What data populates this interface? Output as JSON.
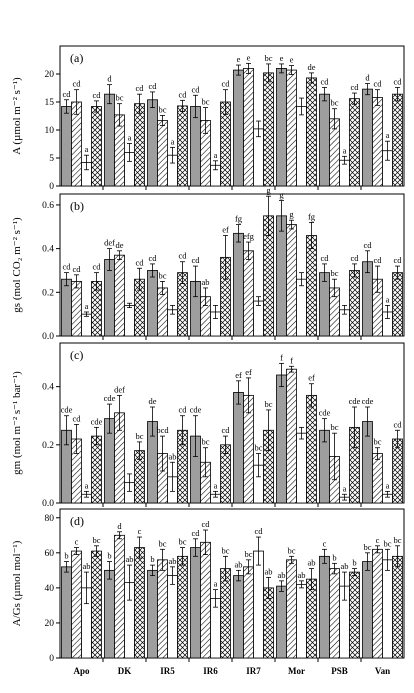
{
  "chart_data": [
    {
      "panel_label": "(a)",
      "type": "bar",
      "ylabel": "A (µmol m⁻² s⁻¹)",
      "ylim": [
        0,
        25
      ],
      "yticks": [
        0,
        5,
        10,
        15,
        20
      ],
      "categories": [
        "Apo",
        "DK",
        "IR5",
        "IR6",
        "IR7",
        "Mor",
        "PSB",
        "Van"
      ],
      "series": [
        {
          "values": [
            14.2,
            16.4,
            15.4,
            14.2,
            20.7,
            21.0,
            16.4,
            17.3
          ],
          "errors": [
            1.2,
            1.7,
            1.4,
            2.0,
            0.9,
            0.8,
            1.2,
            1.0
          ],
          "letters": [
            "cd",
            "d",
            "cd",
            "cd",
            "e",
            "e",
            "cd",
            "d"
          ]
        },
        {
          "values": [
            15.0,
            12.7,
            11.7,
            11.7,
            21.0,
            20.7,
            12.0,
            15.8
          ],
          "errors": [
            2.2,
            2.0,
            0.9,
            2.3,
            0.9,
            0.8,
            1.8,
            1.4
          ],
          "letters": [
            "cd",
            "bc",
            "bc",
            "bc",
            "e",
            "e",
            "bc",
            "cd"
          ]
        },
        {
          "values": [
            4.2,
            6.0,
            5.5,
            3.7,
            10.2,
            14.2,
            4.6,
            6.3
          ],
          "errors": [
            1.3,
            1.6,
            1.4,
            0.8,
            1.4,
            1.5,
            0.7,
            1.7
          ],
          "letters": [
            "a",
            "a",
            "a",
            "a",
            "",
            "",
            "a",
            "a"
          ]
        },
        {
          "values": [
            14.2,
            14.7,
            14.3,
            15.0,
            20.2,
            19.3,
            15.6,
            16.4
          ],
          "errors": [
            1.0,
            1.7,
            1.0,
            2.2,
            1.6,
            0.9,
            1.0,
            1.2
          ],
          "letters": [
            "cd",
            "cd",
            "cd",
            "cd",
            "bc",
            "de",
            "cd",
            "cd"
          ]
        }
      ]
    },
    {
      "panel_label": "(b)",
      "type": "bar",
      "ylabel": "gs (mol CO₂ m⁻² s⁻¹)",
      "ylim": [
        0,
        0.65
      ],
      "yticks": [
        0.0,
        0.2,
        0.4,
        0.6
      ],
      "categories": [
        "Apo",
        "DK",
        "IR5",
        "IR6",
        "IR7",
        "Mor",
        "PSB",
        "Van"
      ],
      "series": [
        {
          "values": [
            0.26,
            0.35,
            0.3,
            0.25,
            0.47,
            0.55,
            0.29,
            0.34
          ],
          "errors": [
            0.03,
            0.05,
            0.03,
            0.07,
            0.04,
            0.07,
            0.04,
            0.05
          ],
          "letters": [
            "cd",
            "def",
            "cd",
            "cd",
            "fg",
            "g",
            "cd",
            "cd"
          ]
        },
        {
          "values": [
            0.25,
            0.37,
            0.22,
            0.18,
            0.39,
            0.51,
            0.22,
            0.26
          ],
          "errors": [
            0.03,
            0.02,
            0.03,
            0.04,
            0.04,
            0.02,
            0.04,
            0.06
          ],
          "letters": [
            "cd",
            "de",
            "bc",
            "ab",
            "efg",
            "g",
            "bc",
            "cd"
          ]
        },
        {
          "values": [
            0.1,
            0.14,
            0.12,
            0.11,
            0.16,
            0.26,
            0.12,
            0.11
          ],
          "errors": [
            0.01,
            0.01,
            0.02,
            0.03,
            0.02,
            0.03,
            0.02,
            0.03
          ],
          "letters": [
            "a",
            "",
            "",
            "",
            "",
            "",
            "",
            "a"
          ]
        },
        {
          "values": [
            0.25,
            0.26,
            0.29,
            0.36,
            0.55,
            0.46,
            0.3,
            0.29
          ],
          "errors": [
            0.04,
            0.05,
            0.05,
            0.1,
            0.09,
            0.06,
            0.03,
            0.03
          ],
          "letters": [
            "cd",
            "cd",
            "cd",
            "ef",
            "g",
            "fg",
            "cd",
            "cd"
          ]
        }
      ]
    },
    {
      "panel_label": "(c)",
      "type": "bar",
      "ylabel": "gm (mol m⁻² s⁻¹ bar⁻¹)",
      "ylim": [
        0,
        0.55
      ],
      "yticks": [
        0.0,
        0.2,
        0.4
      ],
      "categories": [
        "Apo",
        "DK",
        "IR5",
        "IR6",
        "IR7",
        "Mor",
        "PSB",
        "Van"
      ],
      "series": [
        {
          "values": [
            0.25,
            0.29,
            0.28,
            0.23,
            0.38,
            0.44,
            0.25,
            0.28
          ],
          "errors": [
            0.05,
            0.05,
            0.05,
            0.07,
            0.04,
            0.04,
            0.04,
            0.05
          ],
          "letters": [
            "cde",
            "cde",
            "de",
            "cde",
            "ef",
            "f",
            "cde",
            "cde"
          ]
        },
        {
          "values": [
            0.22,
            0.31,
            0.17,
            0.14,
            0.37,
            0.46,
            0.16,
            0.17
          ],
          "errors": [
            0.05,
            0.06,
            0.06,
            0.05,
            0.06,
            0.01,
            0.08,
            0.02
          ],
          "letters": [
            "cd",
            "def",
            "bcd",
            "bc",
            "ef",
            "f",
            "bc",
            "bc"
          ]
        },
        {
          "values": [
            0.03,
            0.07,
            0.09,
            0.03,
            0.13,
            0.24,
            0.02,
            0.03
          ],
          "errors": [
            0.01,
            0.03,
            0.05,
            0.01,
            0.04,
            0.02,
            0.01,
            0.01
          ],
          "letters": [
            "a",
            "",
            "ab",
            "a",
            "bc",
            "",
            "a",
            "a"
          ]
        },
        {
          "values": [
            0.23,
            0.18,
            0.25,
            0.2,
            0.25,
            0.37,
            0.26,
            0.22
          ],
          "errors": [
            0.03,
            0.03,
            0.05,
            0.03,
            0.07,
            0.04,
            0.07,
            0.03
          ],
          "letters": [
            "cde",
            "bc",
            "cd",
            "cd",
            "bc",
            "ef",
            "cde",
            "cd"
          ]
        }
      ]
    },
    {
      "panel_label": "(d)",
      "type": "bar",
      "ylabel": "A/Gs (µmol mol⁻¹)",
      "ylim": [
        0,
        85
      ],
      "yticks": [
        0,
        20,
        40,
        60,
        80
      ],
      "categories": [
        "Apo",
        "DK",
        "IR5",
        "IR6",
        "IR7",
        "Mor",
        "PSB",
        "Van"
      ],
      "series": [
        {
          "values": [
            52,
            50,
            50,
            63,
            47,
            41,
            58,
            55
          ],
          "errors": [
            3,
            5,
            3,
            5,
            3,
            3,
            4,
            5
          ],
          "letters": [
            "b",
            "b",
            "b",
            "cd",
            "ab",
            "ab",
            "c",
            "bc"
          ]
        },
        {
          "values": [
            61,
            70,
            56,
            66,
            52,
            56,
            51,
            62
          ],
          "errors": [
            2,
            2,
            6,
            7,
            4,
            2,
            3,
            2
          ],
          "letters": [
            "c",
            "d",
            "bc",
            "cd",
            "bc",
            "bc",
            "b",
            "c"
          ]
        },
        {
          "values": [
            40,
            43,
            47,
            34,
            61,
            42,
            41,
            56
          ],
          "errors": [
            9,
            10,
            5,
            5,
            8,
            2,
            8,
            6
          ],
          "letters": [
            "ab",
            "ab",
            "ab",
            "a",
            "cd",
            "ab",
            "ab",
            "bc"
          ]
        },
        {
          "values": [
            61,
            63,
            58,
            51,
            40,
            45,
            49,
            58
          ],
          "errors": [
            3,
            6,
            5,
            7,
            6,
            6,
            2,
            6
          ],
          "letters": [
            "bc",
            "c",
            "bc",
            "bc",
            "ab",
            "ab",
            "b",
            "bc"
          ]
        }
      ]
    }
  ],
  "colors": {
    "series1_fill": "#9e9e9e",
    "axis": "#000000"
  }
}
